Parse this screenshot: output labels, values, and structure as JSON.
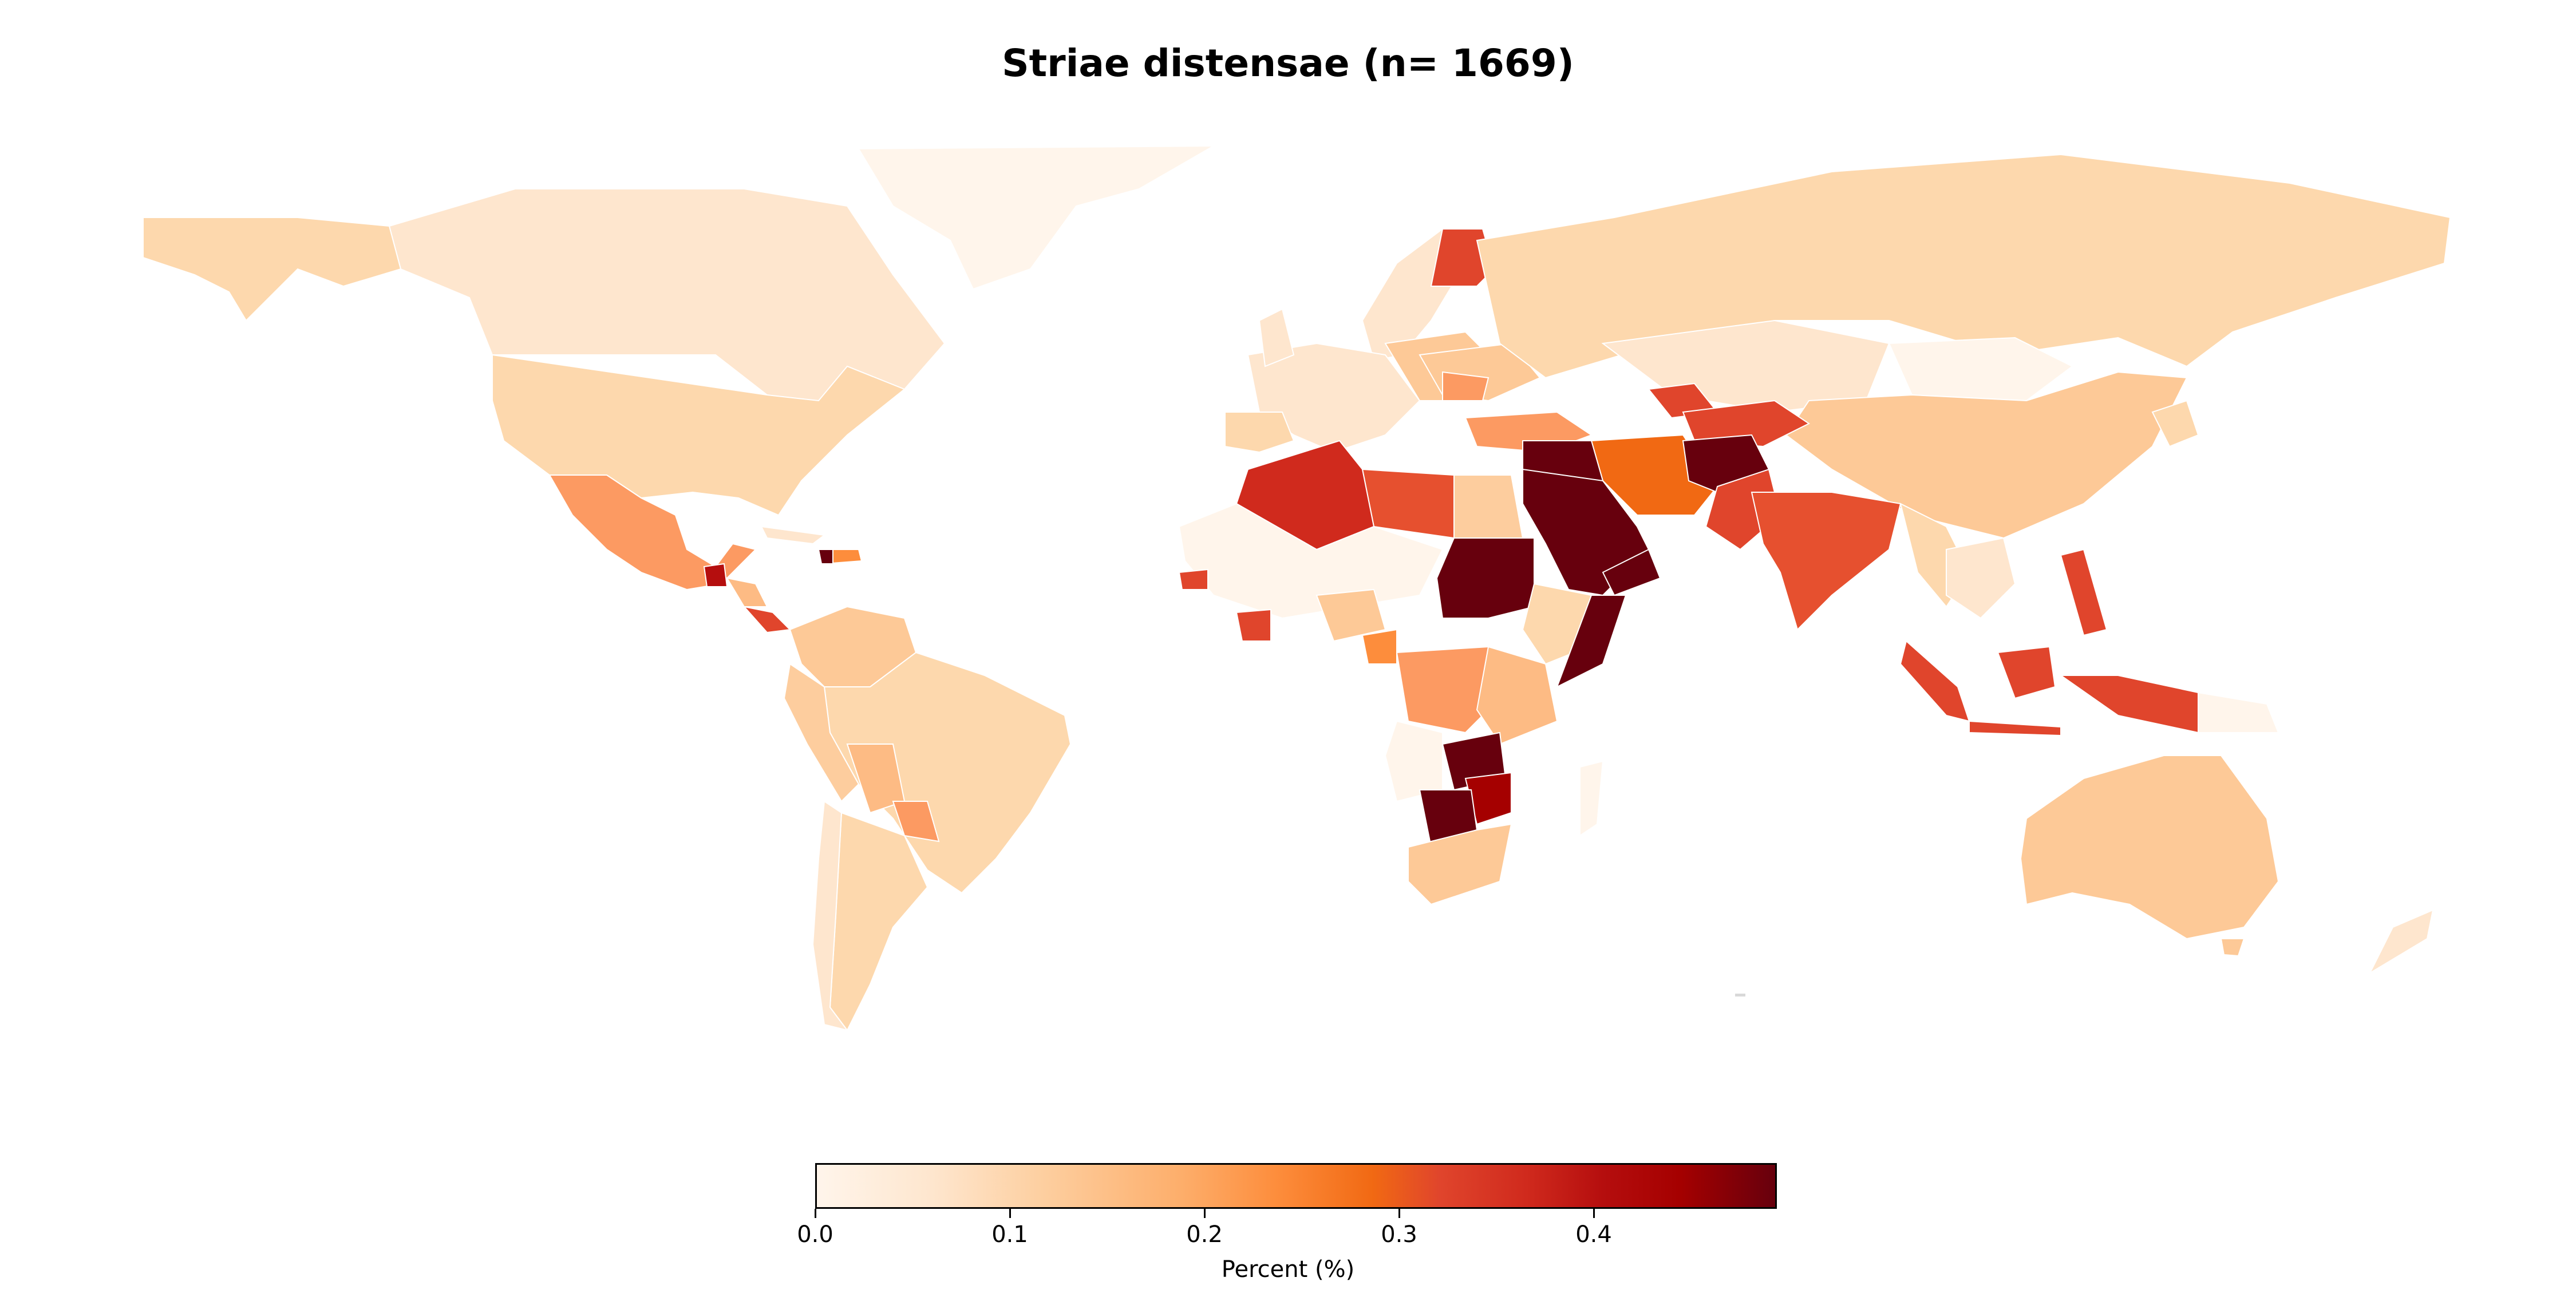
{
  "title": "Striae distensae (n= 1669)",
  "colorbar": {
    "label": "Percent (%)",
    "ticks": [
      "0.0",
      "0.1",
      "0.2",
      "0.3",
      "0.4"
    ],
    "range": [
      0.0,
      0.49
    ],
    "colormap": "OrRd",
    "colors": [
      "#fff5eb",
      "#fdd0a2",
      "#fd8d3c",
      "#e0452c",
      "#a50000",
      "#67000d"
    ]
  }
}
